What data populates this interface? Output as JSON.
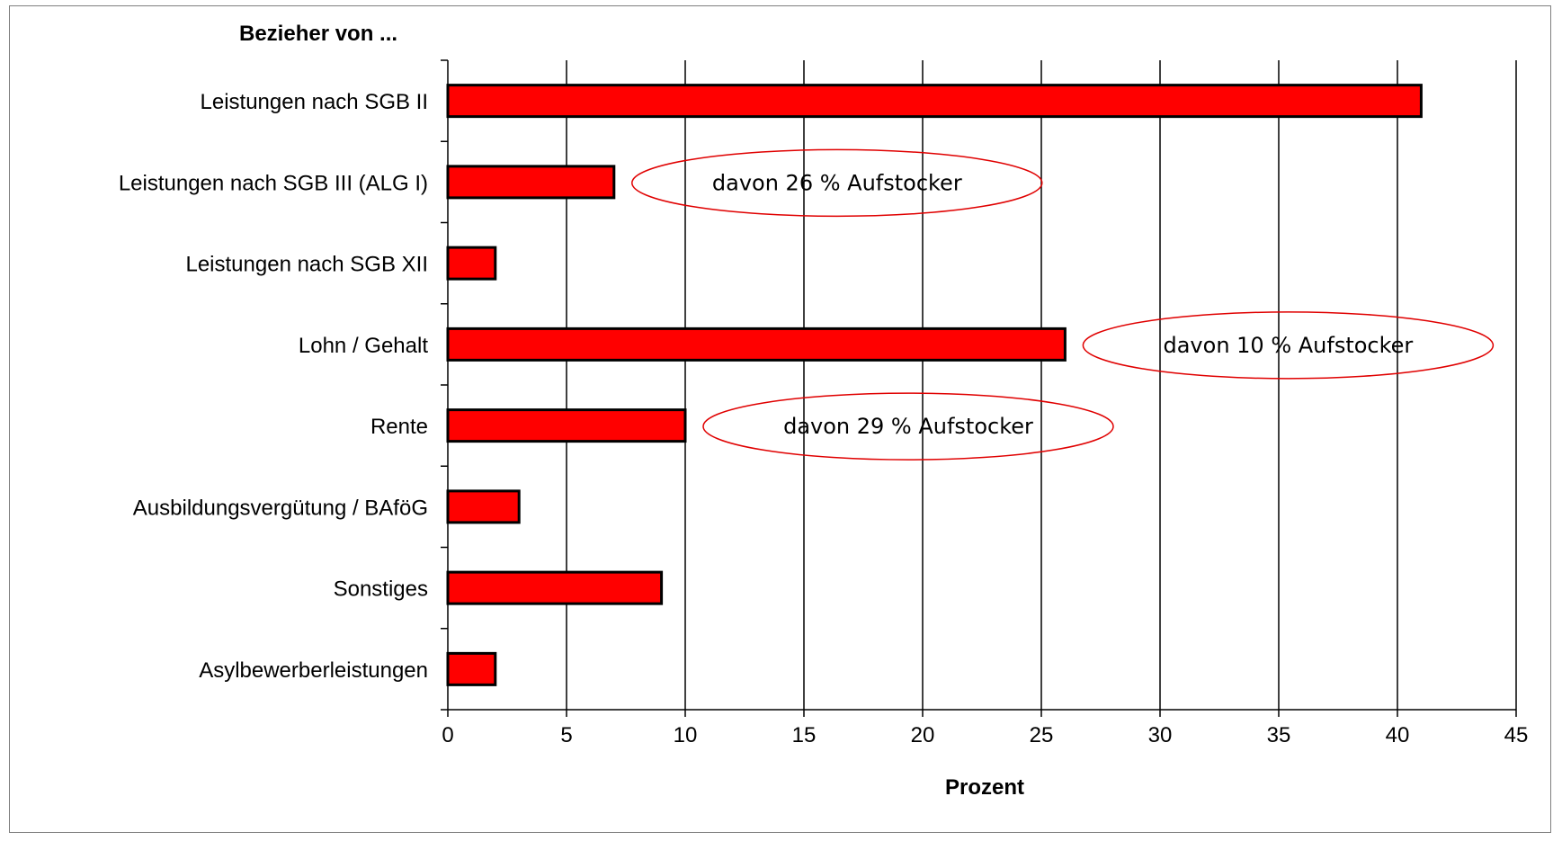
{
  "chart_data": {
    "type": "bar",
    "orientation": "horizontal",
    "title": "Bezieher von ...",
    "xlabel": "Prozent",
    "ylabel": "",
    "xlim": [
      0,
      45
    ],
    "xticks": [
      0,
      5,
      10,
      15,
      20,
      25,
      30,
      35,
      40,
      45
    ],
    "grid": "vertical",
    "legend": "none",
    "bar_color": "#ff0000",
    "bar_edge_color": "#000000",
    "categories": [
      "Leistungen nach SGB II",
      "Leistungen nach SGB III (ALG I)",
      "Leistungen nach SGB XII",
      "Lohn / Gehalt",
      "Rente",
      "Ausbildungsvergütung / BAföG",
      "Sonstiges",
      "Asylbewerberleistungen"
    ],
    "values": [
      41,
      7,
      2,
      26,
      10,
      3,
      9,
      2
    ],
    "annotations": [
      {
        "category": "Leistungen nach SGB III (ALG I)",
        "text": "davon 26 % Aufstocker",
        "shape": "ellipse",
        "color": "#e00000"
      },
      {
        "category": "Lohn / Gehalt",
        "text": "davon 10 % Aufstocker",
        "shape": "ellipse",
        "color": "#e00000"
      },
      {
        "category": "Rente",
        "text": "davon 29 % Aufstocker",
        "shape": "ellipse",
        "color": "#e00000"
      }
    ]
  }
}
